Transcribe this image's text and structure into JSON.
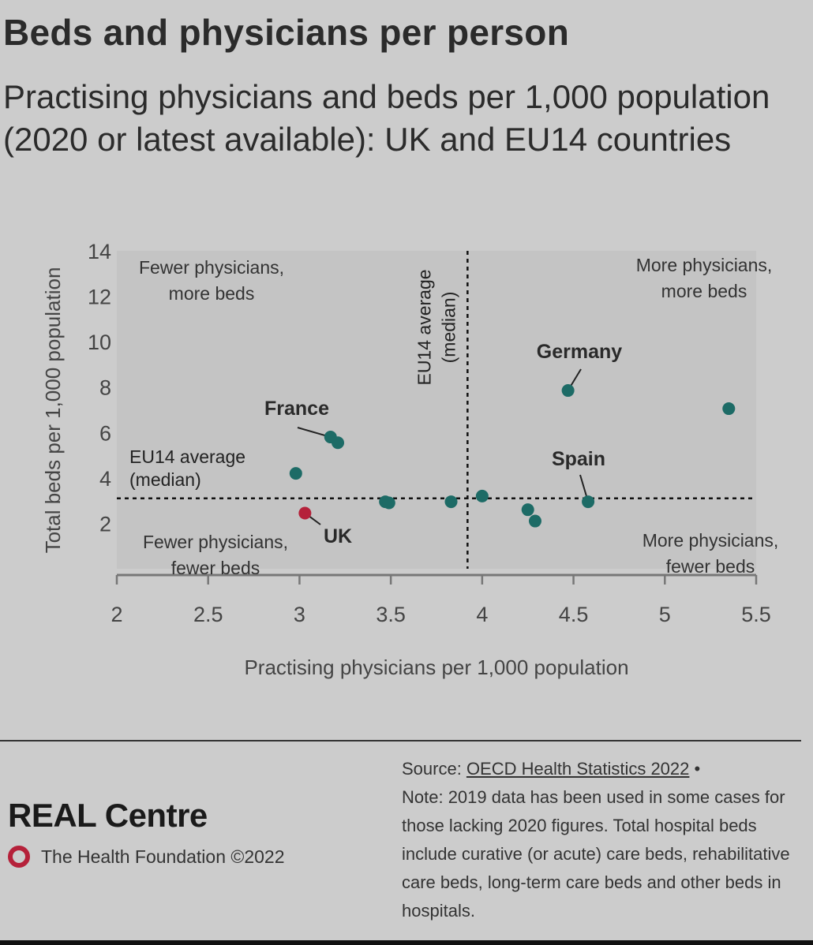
{
  "header": {
    "title": "Beds and physicians per person",
    "subtitle": "Practising physicians and beds per 1,000 population (2020 or latest available): UK and EU14 countries"
  },
  "chart_data": {
    "type": "scatter",
    "xlabel": "Practising physicians per 1,000 population",
    "ylabel": "Total beds per 1,000 population",
    "xlim": [
      2,
      5.5
    ],
    "ylim": [
      0,
      14
    ],
    "x_ticks": [
      "2",
      "2.5",
      "3",
      "3.5",
      "4",
      "4.5",
      "5",
      "5.5"
    ],
    "y_ticks": [
      "2",
      "4",
      "6",
      "8",
      "10",
      "12",
      "14"
    ],
    "median_x": 3.92,
    "median_y": 3.1,
    "median_x_label": [
      "EU14 average",
      "(median)"
    ],
    "median_y_label": [
      "EU14 average",
      "(median)"
    ],
    "quadrant_labels": {
      "top_left": [
        "Fewer physicians,",
        "more beds"
      ],
      "top_right": [
        "More physicians,",
        "more beds"
      ],
      "bottom_left": [
        "Fewer physicians,",
        "fewer beds"
      ],
      "bottom_right": [
        "More physicians,",
        "fewer beds"
      ]
    },
    "series": [
      {
        "name": "EU14",
        "color": "#1d6b66",
        "points": [
          {
            "x": 2.98,
            "y": 4.2
          },
          {
            "x": 3.17,
            "y": 5.8,
            "label": "France"
          },
          {
            "x": 3.21,
            "y": 5.55
          },
          {
            "x": 3.47,
            "y": 2.95
          },
          {
            "x": 3.49,
            "y": 2.9
          },
          {
            "x": 3.83,
            "y": 2.95
          },
          {
            "x": 4.0,
            "y": 3.2
          },
          {
            "x": 4.25,
            "y": 2.6
          },
          {
            "x": 4.29,
            "y": 2.1
          },
          {
            "x": 4.47,
            "y": 7.85,
            "label": "Germany"
          },
          {
            "x": 4.58,
            "y": 2.95,
            "label": "Spain"
          },
          {
            "x": 5.35,
            "y": 7.05
          }
        ]
      },
      {
        "name": "UK",
        "color": "#b5213a",
        "points": [
          {
            "x": 3.03,
            "y": 2.45,
            "label": "UK"
          }
        ]
      }
    ]
  },
  "footer": {
    "brand": "REAL Centre",
    "org": "The Health Foundation ©2022",
    "source_prefix": "Source: ",
    "source_link": "OECD Health Statistics 2022",
    "source_bullet": " •",
    "note": "Note: 2019 data has been used in some cases for those lacking 2020 figures. Total hospital beds include curative (or acute) care beds, rehabilitative care beds, long-term care beds and other beds in hospitals."
  }
}
